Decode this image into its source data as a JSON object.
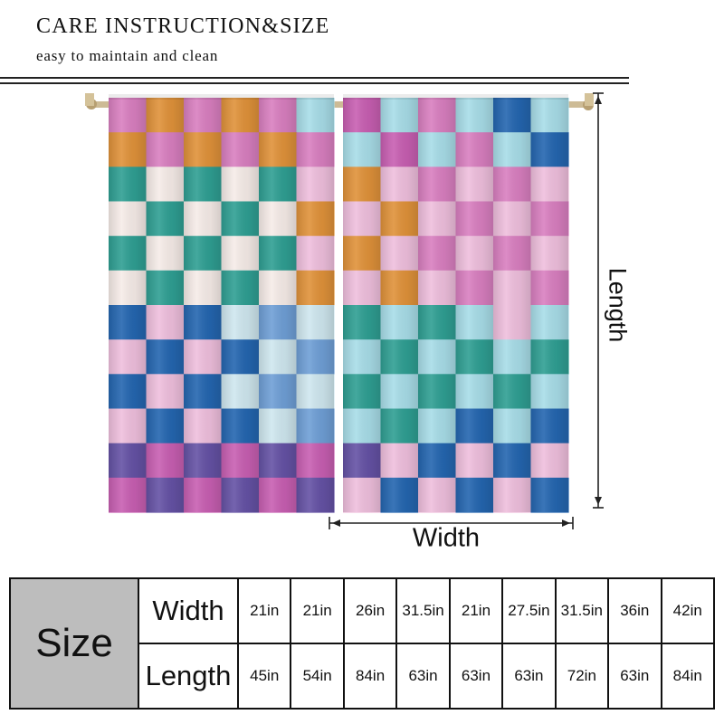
{
  "header": {
    "title": "CARE INSTRUCTION&SIZE",
    "subtitle": "easy to maintain and clean"
  },
  "figure": {
    "length_label": "Length",
    "width_label": "Width",
    "colors": {
      "pink": "#d97fc0",
      "orange": "#e0923a",
      "teal": "#2f9f93",
      "cream": "#f6ece8",
      "blue": "#2466b0",
      "lightpink": "#efbfdd",
      "purple": "#6552a5",
      "magenta": "#c85fb2",
      "skyblue": "#a8dde8",
      "paleblue": "#cfe7ef",
      "midblue": "#6f9fd6",
      "rod": "#c9b48c"
    },
    "left_panel_rows": [
      [
        "pink",
        "orange",
        "pink",
        "orange",
        "pink",
        "skyblue"
      ],
      [
        "orange",
        "pink",
        "orange",
        "pink",
        "orange",
        "pink"
      ],
      [
        "teal",
        "cream",
        "teal",
        "cream",
        "teal",
        "lightpink"
      ],
      [
        "cream",
        "teal",
        "cream",
        "teal",
        "cream",
        "orange"
      ],
      [
        "teal",
        "cream",
        "teal",
        "cream",
        "teal",
        "lightpink"
      ],
      [
        "cream",
        "teal",
        "cream",
        "teal",
        "cream",
        "orange"
      ],
      [
        "blue",
        "lightpink",
        "blue",
        "paleblue",
        "midblue",
        "paleblue"
      ],
      [
        "lightpink",
        "blue",
        "lightpink",
        "blue",
        "paleblue",
        "midblue"
      ],
      [
        "blue",
        "lightpink",
        "blue",
        "paleblue",
        "midblue",
        "paleblue"
      ],
      [
        "lightpink",
        "blue",
        "lightpink",
        "blue",
        "paleblue",
        "midblue"
      ],
      [
        "purple",
        "magenta",
        "purple",
        "magenta",
        "purple",
        "magenta"
      ],
      [
        "magenta",
        "purple",
        "magenta",
        "purple",
        "magenta",
        "purple"
      ]
    ],
    "right_panel_rows": [
      [
        "magenta",
        "skyblue",
        "pink",
        "skyblue",
        "blue",
        "skyblue"
      ],
      [
        "skyblue",
        "magenta",
        "skyblue",
        "pink",
        "skyblue",
        "blue"
      ],
      [
        "orange",
        "lightpink",
        "pink",
        "lightpink",
        "pink",
        "lightpink"
      ],
      [
        "lightpink",
        "orange",
        "lightpink",
        "pink",
        "lightpink",
        "pink"
      ],
      [
        "orange",
        "lightpink",
        "pink",
        "lightpink",
        "pink",
        "lightpink"
      ],
      [
        "lightpink",
        "orange",
        "lightpink",
        "pink",
        "lightpink",
        "pink"
      ],
      [
        "teal",
        "skyblue",
        "teal",
        "skyblue",
        "lightpink",
        "skyblue"
      ],
      [
        "skyblue",
        "teal",
        "skyblue",
        "teal",
        "skyblue",
        "teal"
      ],
      [
        "teal",
        "skyblue",
        "teal",
        "skyblue",
        "teal",
        "skyblue"
      ],
      [
        "skyblue",
        "teal",
        "skyblue",
        "blue",
        "skyblue",
        "blue"
      ],
      [
        "purple",
        "lightpink",
        "blue",
        "lightpink",
        "blue",
        "lightpink"
      ],
      [
        "lightpink",
        "blue",
        "lightpink",
        "blue",
        "lightpink",
        "blue"
      ]
    ]
  },
  "size_table": {
    "header": "Size",
    "width_label": "Width",
    "length_label": "Length",
    "widths": [
      "21in",
      "21in",
      "26in",
      "31.5in",
      "21in",
      "27.5in",
      "31.5in",
      "36in",
      "42in"
    ],
    "lengths": [
      "45in",
      "54in",
      "84in",
      "63in",
      "63in",
      "63in",
      "72in",
      "63in",
      "84in"
    ]
  }
}
